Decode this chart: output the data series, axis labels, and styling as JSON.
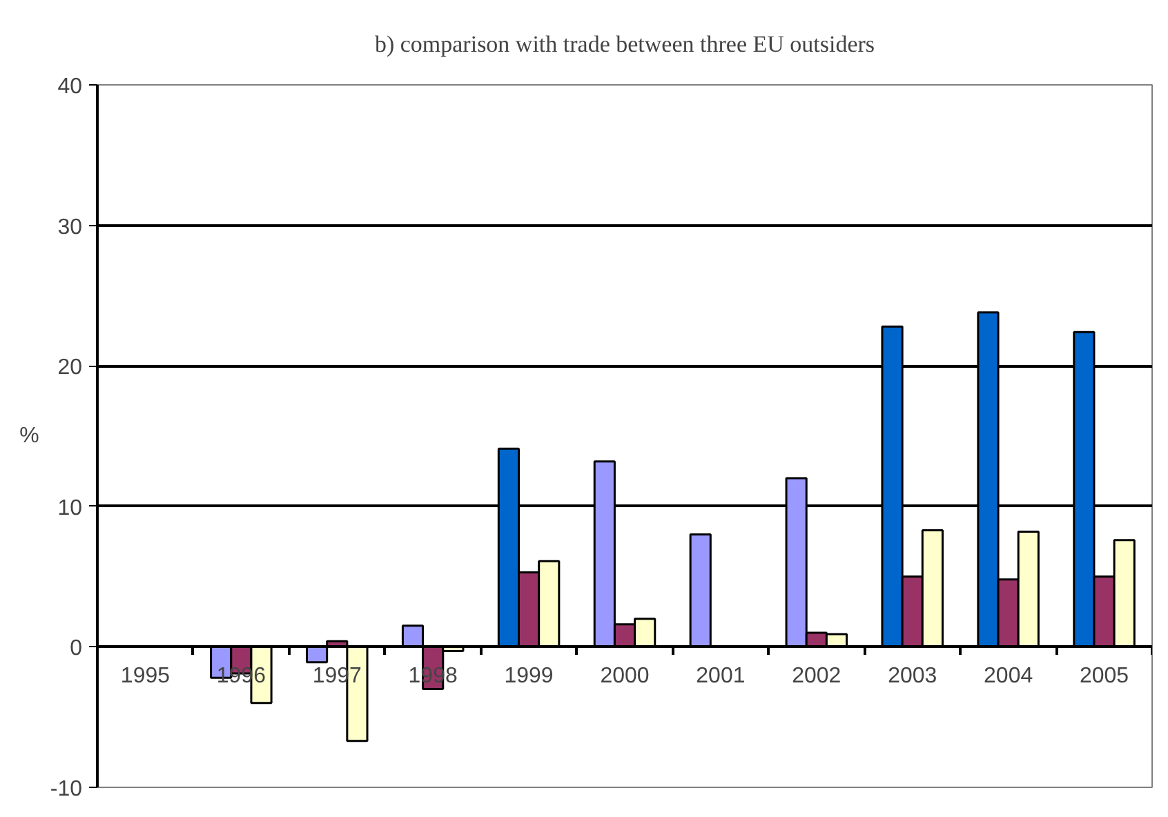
{
  "chart_data": {
    "type": "bar",
    "title": "b) comparison with trade between three EU outsiders",
    "ylabel": "%",
    "categories": [
      "1995",
      "1996",
      "1997",
      "1998",
      "1999",
      "2000",
      "2001",
      "2002",
      "2003",
      "2004",
      "2005"
    ],
    "series": [
      {
        "colors": [
          "#9999ff",
          "#9999ff",
          "#9999ff",
          "#9999ff",
          "#0066cc",
          "#9999ff",
          "#9999ff",
          "#9999ff",
          "#0066cc",
          "#0066cc",
          "#0066cc"
        ],
        "values": [
          null,
          -2.2,
          -1.1,
          1.5,
          14.1,
          13.2,
          8.0,
          12.0,
          22.8,
          23.8,
          22.4
        ]
      },
      {
        "color": "#993366",
        "values": [
          null,
          -1.9,
          0.4,
          -3.0,
          5.3,
          1.6,
          null,
          1.0,
          5.0,
          4.8,
          5.0
        ]
      },
      {
        "color": "#ffffcc",
        "values": [
          null,
          -4.0,
          -6.7,
          -0.3,
          6.1,
          2.0,
          null,
          0.9,
          8.3,
          8.2,
          7.6
        ]
      }
    ],
    "ylim": [
      -10,
      40
    ],
    "yticks": [
      -10,
      0,
      10,
      20,
      30,
      40
    ],
    "grid": "y"
  }
}
